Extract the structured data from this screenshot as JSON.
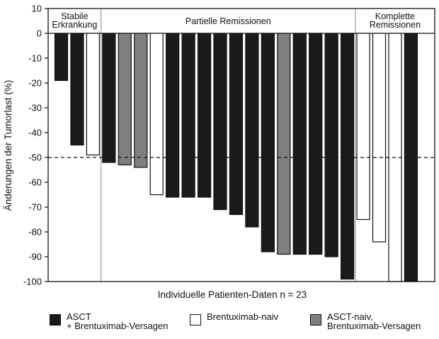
{
  "chart_data": {
    "type": "bar",
    "ylabel": "Änderungen der Tumorlast (%)",
    "xlabel": "Individuelle Patienten-Daten n = 23",
    "ylim": [
      -100,
      10
    ],
    "yticks": [
      10,
      0,
      -10,
      -20,
      -30,
      -40,
      -50,
      -60,
      -70,
      -80,
      -90,
      -100
    ],
    "reference_line": -50,
    "colors": {
      "asct_failure": "#1a1a1a",
      "brentuximab_naive": "#ffffff",
      "asct_naive": "#7f7f7f"
    },
    "legend": [
      {
        "key": "asct_failure",
        "label": "ASCT\n+ Brentuximab-Versagen"
      },
      {
        "key": "brentuximab_naive",
        "label": "Brentuximab-naiv"
      },
      {
        "key": "asct_naive",
        "label": "ASCT-naiv,\nBrentuximab-Versagen"
      }
    ],
    "groups": [
      {
        "label": "Stabile\nErkrankung",
        "start": 0,
        "end": 2
      },
      {
        "label": "Partielle Remissionen",
        "start": 3,
        "end": 18
      },
      {
        "label": "Komplette\nRemissionen",
        "start": 19,
        "end": 22
      }
    ],
    "bars": [
      {
        "value": -19,
        "group": "asct_failure"
      },
      {
        "value": -45,
        "group": "asct_failure"
      },
      {
        "value": -49,
        "group": "brentuximab_naive"
      },
      {
        "value": -52,
        "group": "asct_failure"
      },
      {
        "value": -53,
        "group": "asct_naive"
      },
      {
        "value": -54,
        "group": "asct_naive"
      },
      {
        "value": -65,
        "group": "brentuximab_naive"
      },
      {
        "value": -66,
        "group": "asct_failure"
      },
      {
        "value": -66,
        "group": "asct_failure"
      },
      {
        "value": -66,
        "group": "asct_failure"
      },
      {
        "value": -71,
        "group": "asct_failure"
      },
      {
        "value": -73,
        "group": "asct_failure"
      },
      {
        "value": -78,
        "group": "asct_failure"
      },
      {
        "value": -88,
        "group": "asct_failure"
      },
      {
        "value": -89,
        "group": "asct_naive"
      },
      {
        "value": -89,
        "group": "asct_failure"
      },
      {
        "value": -89,
        "group": "asct_failure"
      },
      {
        "value": -90,
        "group": "asct_failure"
      },
      {
        "value": -99,
        "group": "asct_failure"
      },
      {
        "value": -75,
        "group": "brentuximab_naive"
      },
      {
        "value": -84,
        "group": "brentuximab_naive"
      },
      {
        "value": -100,
        "group": "brentuximab_naive"
      },
      {
        "value": -100,
        "group": "asct_failure"
      }
    ]
  }
}
